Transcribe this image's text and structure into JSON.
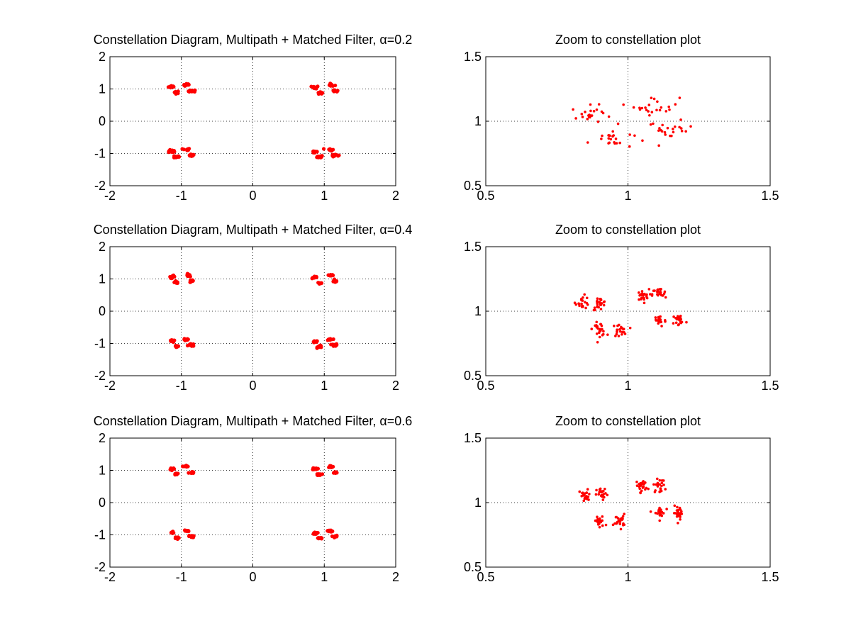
{
  "figure": {
    "background": "#ffffff",
    "marker_color": "#ff0000",
    "marker": "point",
    "grid": "dotted"
  },
  "chart_data": [
    {
      "type": "scatter",
      "title": "Constellation Diagram, Multipath + Matched Filter, α=0.2",
      "xlabel": "",
      "ylabel": "",
      "xlim": [
        -2,
        2
      ],
      "ylim": [
        -2,
        2
      ],
      "xticks": [
        -2,
        -1,
        0,
        1,
        2
      ],
      "yticks": [
        -2,
        -1,
        0,
        1,
        2
      ],
      "grid": true,
      "series": [
        {
          "color": "#ff0000",
          "clusters": [
            {
              "x": -1.13,
              "y": 1.07,
              "sx": 0.025,
              "sy": 0.02
            },
            {
              "x": -1.07,
              "y": 0.9,
              "sx": 0.02,
              "sy": 0.02
            },
            {
              "x": -0.92,
              "y": 1.12,
              "sx": 0.025,
              "sy": 0.02
            },
            {
              "x": -0.85,
              "y": 0.93,
              "sx": 0.025,
              "sy": 0.02
            },
            {
              "x": 0.87,
              "y": 1.05,
              "sx": 0.025,
              "sy": 0.02
            },
            {
              "x": 0.94,
              "y": 0.87,
              "sx": 0.02,
              "sy": 0.02
            },
            {
              "x": 1.1,
              "y": 1.12,
              "sx": 0.025,
              "sy": 0.02
            },
            {
              "x": 1.15,
              "y": 0.93,
              "sx": 0.025,
              "sy": 0.02
            },
            {
              "x": -1.13,
              "y": -0.93,
              "sx": 0.025,
              "sy": 0.02
            },
            {
              "x": -1.07,
              "y": -1.1,
              "sx": 0.02,
              "sy": 0.02
            },
            {
              "x": -0.93,
              "y": -0.88,
              "sx": 0.025,
              "sy": 0.02
            },
            {
              "x": -0.86,
              "y": -1.05,
              "sx": 0.025,
              "sy": 0.02
            },
            {
              "x": 0.87,
              "y": -0.95,
              "sx": 0.025,
              "sy": 0.02
            },
            {
              "x": 0.94,
              "y": -1.1,
              "sx": 0.02,
              "sy": 0.02
            },
            {
              "x": 1.08,
              "y": -0.88,
              "sx": 0.025,
              "sy": 0.02
            },
            {
              "x": 1.15,
              "y": -1.05,
              "sx": 0.025,
              "sy": 0.02
            }
          ]
        }
      ]
    },
    {
      "type": "scatter",
      "title": "Zoom to constellation plot",
      "xlabel": "",
      "ylabel": "",
      "xlim": [
        0.5,
        1.5
      ],
      "ylim": [
        0.5,
        1.5
      ],
      "xticks": [
        0.5,
        1,
        1.5
      ],
      "yticks": [
        0.5,
        1,
        1.5
      ],
      "grid": true,
      "series": [
        {
          "color": "#ff0000",
          "clusters": [
            {
              "x": 0.87,
              "y": 1.05,
              "sx": 0.035,
              "sy": 0.035
            },
            {
              "x": 0.94,
              "y": 0.86,
              "sx": 0.04,
              "sy": 0.035
            },
            {
              "x": 1.1,
              "y": 1.12,
              "sx": 0.04,
              "sy": 0.035
            },
            {
              "x": 1.15,
              "y": 0.93,
              "sx": 0.04,
              "sy": 0.035
            }
          ]
        }
      ]
    },
    {
      "type": "scatter",
      "title": "Constellation Diagram, Multipath + Matched Filter, α=0.4",
      "xlabel": "",
      "ylabel": "",
      "xlim": [
        -2,
        2
      ],
      "ylim": [
        -2,
        2
      ],
      "xticks": [
        -2,
        -1,
        0,
        1,
        2
      ],
      "yticks": [
        -2,
        -1,
        0,
        1,
        2
      ],
      "grid": true,
      "series": [
        {
          "color": "#ff0000",
          "clusters": [
            {
              "x": -1.13,
              "y": 1.07,
              "sx": 0.02,
              "sy": 0.02
            },
            {
              "x": -1.07,
              "y": 0.9,
              "sx": 0.018,
              "sy": 0.018
            },
            {
              "x": -0.92,
              "y": 1.12,
              "sx": 0.02,
              "sy": 0.018
            },
            {
              "x": -0.85,
              "y": 0.93,
              "sx": 0.02,
              "sy": 0.018
            },
            {
              "x": 0.87,
              "y": 1.05,
              "sx": 0.02,
              "sy": 0.018
            },
            {
              "x": 0.94,
              "y": 0.87,
              "sx": 0.018,
              "sy": 0.018
            },
            {
              "x": 1.1,
              "y": 1.12,
              "sx": 0.02,
              "sy": 0.018
            },
            {
              "x": 1.15,
              "y": 0.93,
              "sx": 0.02,
              "sy": 0.018
            },
            {
              "x": -1.13,
              "y": -0.93,
              "sx": 0.02,
              "sy": 0.018
            },
            {
              "x": -1.07,
              "y": -1.1,
              "sx": 0.018,
              "sy": 0.018
            },
            {
              "x": -0.93,
              "y": -0.88,
              "sx": 0.02,
              "sy": 0.018
            },
            {
              "x": -0.86,
              "y": -1.05,
              "sx": 0.02,
              "sy": 0.018
            },
            {
              "x": 0.87,
              "y": -0.95,
              "sx": 0.02,
              "sy": 0.018
            },
            {
              "x": 0.94,
              "y": -1.1,
              "sx": 0.018,
              "sy": 0.018
            },
            {
              "x": 1.08,
              "y": -0.88,
              "sx": 0.02,
              "sy": 0.018
            },
            {
              "x": 1.15,
              "y": -1.05,
              "sx": 0.02,
              "sy": 0.018
            }
          ]
        }
      ]
    },
    {
      "type": "scatter",
      "title": "Zoom to constellation plot",
      "xlabel": "",
      "ylabel": "",
      "xlim": [
        0.5,
        1.5
      ],
      "ylim": [
        0.5,
        1.5
      ],
      "xticks": [
        0.5,
        1,
        1.5
      ],
      "yticks": [
        0.5,
        1,
        1.5
      ],
      "grid": true,
      "series": [
        {
          "color": "#ff0000",
          "clusters": [
            {
              "x": 0.84,
              "y": 1.07,
              "sx": 0.012,
              "sy": 0.025
            },
            {
              "x": 0.9,
              "y": 1.06,
              "sx": 0.012,
              "sy": 0.025
            },
            {
              "x": 0.9,
              "y": 0.86,
              "sx": 0.012,
              "sy": 0.025
            },
            {
              "x": 0.97,
              "y": 0.85,
              "sx": 0.012,
              "sy": 0.025
            },
            {
              "x": 1.05,
              "y": 1.12,
              "sx": 0.012,
              "sy": 0.025
            },
            {
              "x": 1.11,
              "y": 1.13,
              "sx": 0.012,
              "sy": 0.025
            },
            {
              "x": 1.11,
              "y": 0.93,
              "sx": 0.012,
              "sy": 0.025
            },
            {
              "x": 1.18,
              "y": 0.93,
              "sx": 0.012,
              "sy": 0.025
            }
          ]
        }
      ]
    },
    {
      "type": "scatter",
      "title": "Constellation Diagram, Multipath + Matched Filter, α=0.6",
      "xlabel": "",
      "ylabel": "",
      "xlim": [
        -2,
        2
      ],
      "ylim": [
        -2,
        2
      ],
      "xticks": [
        -2,
        -1,
        0,
        1,
        2
      ],
      "yticks": [
        -2,
        -1,
        0,
        1,
        2
      ],
      "grid": true,
      "series": [
        {
          "color": "#ff0000",
          "clusters": [
            {
              "x": -1.13,
              "y": 1.05,
              "sx": 0.018,
              "sy": 0.018
            },
            {
              "x": -1.07,
              "y": 0.89,
              "sx": 0.015,
              "sy": 0.015
            },
            {
              "x": -0.93,
              "y": 1.12,
              "sx": 0.018,
              "sy": 0.015
            },
            {
              "x": -0.86,
              "y": 0.93,
              "sx": 0.018,
              "sy": 0.015
            },
            {
              "x": 0.87,
              "y": 1.05,
              "sx": 0.018,
              "sy": 0.015
            },
            {
              "x": 0.94,
              "y": 0.87,
              "sx": 0.015,
              "sy": 0.015
            },
            {
              "x": 1.09,
              "y": 1.12,
              "sx": 0.018,
              "sy": 0.015
            },
            {
              "x": 1.15,
              "y": 0.93,
              "sx": 0.018,
              "sy": 0.015
            },
            {
              "x": -1.13,
              "y": -0.93,
              "sx": 0.018,
              "sy": 0.015
            },
            {
              "x": -1.07,
              "y": -1.1,
              "sx": 0.015,
              "sy": 0.015
            },
            {
              "x": -0.93,
              "y": -0.88,
              "sx": 0.018,
              "sy": 0.015
            },
            {
              "x": -0.86,
              "y": -1.05,
              "sx": 0.018,
              "sy": 0.015
            },
            {
              "x": 0.87,
              "y": -0.95,
              "sx": 0.018,
              "sy": 0.015
            },
            {
              "x": 0.94,
              "y": -1.1,
              "sx": 0.015,
              "sy": 0.015
            },
            {
              "x": 1.08,
              "y": -0.88,
              "sx": 0.018,
              "sy": 0.015
            },
            {
              "x": 1.15,
              "y": -1.05,
              "sx": 0.018,
              "sy": 0.015
            }
          ]
        }
      ]
    },
    {
      "type": "scatter",
      "title": "Zoom to constellation plot",
      "xlabel": "",
      "ylabel": "",
      "xlim": [
        0.5,
        1.5
      ],
      "ylim": [
        0.5,
        1.5
      ],
      "xticks": [
        0.5,
        1,
        1.5
      ],
      "yticks": [
        0.5,
        1,
        1.5
      ],
      "grid": true,
      "series": [
        {
          "color": "#ff0000",
          "clusters": [
            {
              "x": 0.85,
              "y": 1.05,
              "sx": 0.01,
              "sy": 0.025
            },
            {
              "x": 0.91,
              "y": 1.06,
              "sx": 0.01,
              "sy": 0.025
            },
            {
              "x": 0.9,
              "y": 0.85,
              "sx": 0.01,
              "sy": 0.025
            },
            {
              "x": 0.97,
              "y": 0.86,
              "sx": 0.01,
              "sy": 0.025
            },
            {
              "x": 1.05,
              "y": 1.13,
              "sx": 0.01,
              "sy": 0.025
            },
            {
              "x": 1.11,
              "y": 1.13,
              "sx": 0.01,
              "sy": 0.025
            },
            {
              "x": 1.11,
              "y": 0.92,
              "sx": 0.01,
              "sy": 0.025
            },
            {
              "x": 1.18,
              "y": 0.92,
              "sx": 0.01,
              "sy": 0.025
            }
          ]
        }
      ]
    }
  ]
}
